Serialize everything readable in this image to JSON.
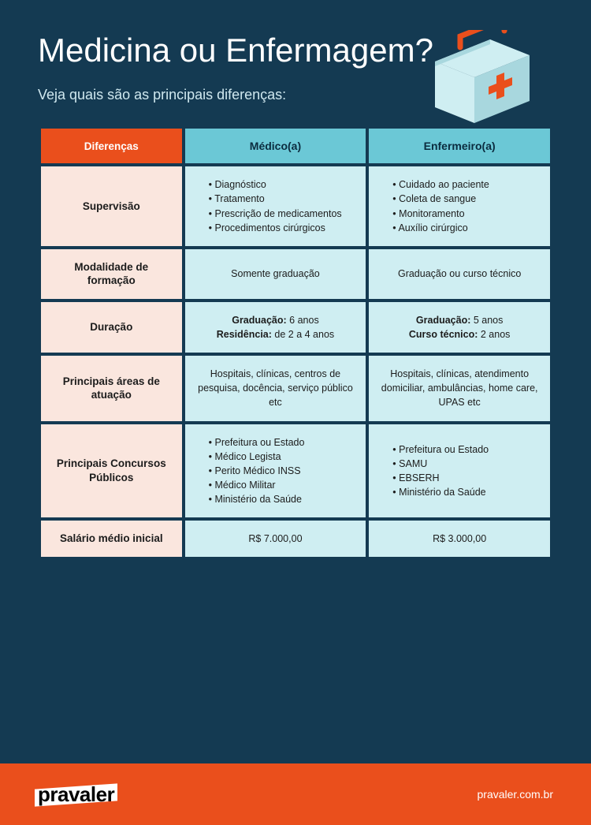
{
  "colors": {
    "page_bg": "#143a52",
    "title_color": "#ffffff",
    "subtitle_color": "#cfe8ef",
    "table_border": "#143a52",
    "diff_header_bg": "#ea4f1c",
    "col_header_bg": "#6bc8d6",
    "col_header_text": "#0b2c3f",
    "row_label_bg": "#fae6de",
    "row_label_text": "#1c1c1c",
    "cell_bg": "#cfeef2",
    "cell_text": "#1c1c1c",
    "footer_bg": "#ea4f1c",
    "logo_bg": "#ffffff",
    "logo_text": "#000000",
    "kit_body": "#cfeef2",
    "kit_side": "#a8d7de",
    "kit_handle": "#ea4f1c",
    "kit_cross": "#ea4f1c"
  },
  "header": {
    "title": "Medicina ou Enfermagem?",
    "subtitle": "Veja quais são as principais diferenças:"
  },
  "table": {
    "col_widths_pct": [
      28,
      36,
      36
    ],
    "header": {
      "diff": "Diferenças",
      "col1": "Médico(a)",
      "col2": "Enfermeiro(a)"
    },
    "rows": [
      {
        "label": "Supervisão",
        "type": "list",
        "col1": [
          "Diagnóstico",
          "Tratamento",
          "Prescrição de medicamentos",
          "Procedimentos cirúrgicos"
        ],
        "col2": [
          "Cuidado ao paciente",
          "Coleta de sangue",
          "Monitoramento",
          "Auxílio cirúrgico"
        ]
      },
      {
        "label": "Modalidade de formação",
        "type": "text",
        "col1": "Somente graduação",
        "col2": "Graduação ou curso técnico"
      },
      {
        "label": "Duração",
        "type": "kv",
        "col1": [
          [
            "Graduação:",
            "6 anos"
          ],
          [
            "Residência:",
            "de 2 a 4 anos"
          ]
        ],
        "col2": [
          [
            "Graduação:",
            "5 anos"
          ],
          [
            "Curso técnico:",
            "2 anos"
          ]
        ]
      },
      {
        "label": "Principais áreas de atuação",
        "type": "text",
        "col1": "Hospitais, clínicas, centros de pesquisa, docência, serviço público etc",
        "col2": "Hospitais, clínicas, atendimento domiciliar, ambulâncias, home care, UPAS etc"
      },
      {
        "label": "Principais Concursos Públicos",
        "type": "list",
        "col1": [
          "Prefeitura ou Estado",
          "Médico Legista",
          "Perito Médico INSS",
          "Médico Militar",
          "Ministério da Saúde"
        ],
        "col2": [
          "Prefeitura ou Estado",
          "SAMU",
          "EBSERH",
          "Ministério da Saúde"
        ]
      },
      {
        "label": "Salário médio inicial",
        "type": "text",
        "col1": "R$ 7.000,00",
        "col2": "R$ 3.000,00"
      }
    ]
  },
  "footer": {
    "logo_text": "pravaler",
    "url": "pravaler.com.br"
  }
}
